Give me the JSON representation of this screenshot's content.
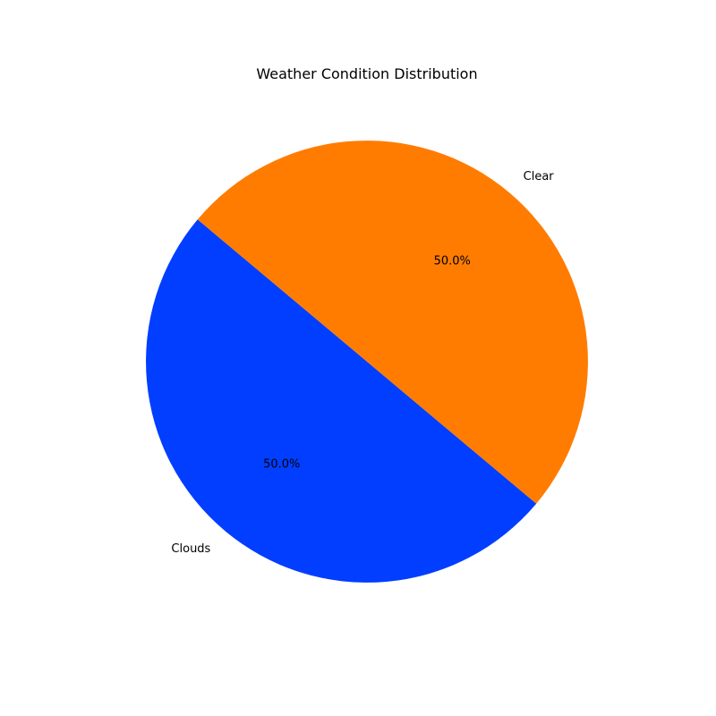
{
  "chart_data": {
    "type": "pie",
    "title": "Weather Condition Distribution",
    "categories": [
      "Clouds",
      "Clear"
    ],
    "values": [
      50,
      50
    ],
    "percent_labels": [
      "50.0%",
      "50.0%"
    ],
    "colors": [
      "#023eff",
      "#ff7c00"
    ],
    "start_angle_deg": 140
  }
}
